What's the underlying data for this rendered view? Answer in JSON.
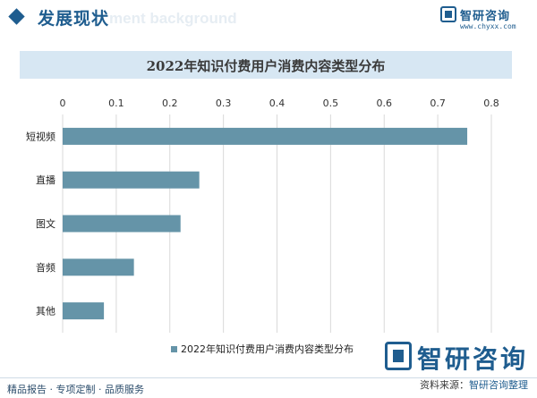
{
  "header": {
    "title": "发展现状",
    "ghost_text": "ment background"
  },
  "brand": {
    "name": "智研咨询",
    "url": "www.chyxx.com"
  },
  "watermark": {
    "text": "智研咨询"
  },
  "footer": {
    "left_text": "精品报告 · 专项定制 · 品质服务",
    "source_label": "资料来源：",
    "source_value": "智研咨询整理"
  },
  "colors": {
    "bar": "#6594a8",
    "title_bar_bg": "#d7e7f3",
    "brand": "#1f5d8f",
    "grid": "#d9d9d9"
  },
  "chart_data": {
    "type": "bar",
    "orientation": "horizontal",
    "title": "2022年知识付费用户消费内容类型分布",
    "categories": [
      "短视频",
      "直播",
      "图文",
      "音频",
      "其他"
    ],
    "series": [
      {
        "name": "2022年知识付费用户消费内容类型分布",
        "values": [
          0.755,
          0.255,
          0.22,
          0.133,
          0.077
        ]
      }
    ],
    "x_ticks": [
      "0",
      "0.1",
      "0.2",
      "0.3",
      "0.4",
      "0.5",
      "0.6",
      "0.7",
      "0.8"
    ],
    "xlim": [
      0,
      0.8
    ],
    "grid": true,
    "legend_position": "bottom"
  }
}
